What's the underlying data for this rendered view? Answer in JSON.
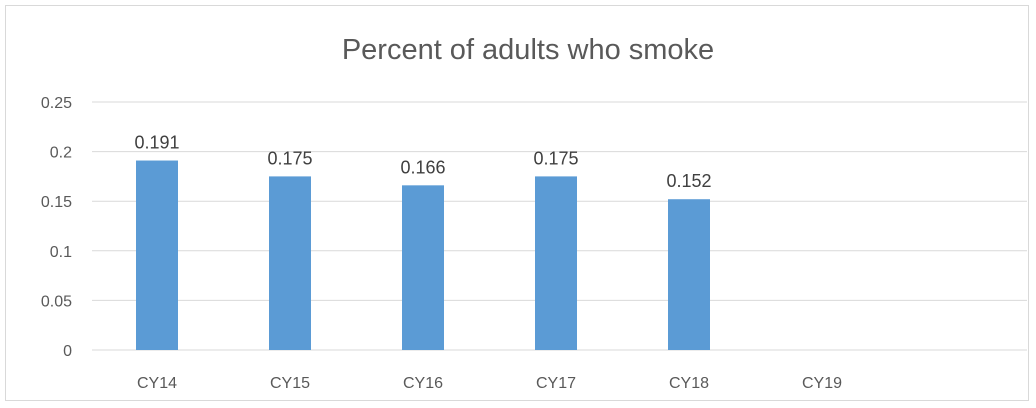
{
  "chart_data": {
    "type": "bar",
    "title": "Percent of adults who smoke",
    "categories": [
      "CY14",
      "CY15",
      "CY16",
      "CY17",
      "CY18",
      "CY19"
    ],
    "values": [
      0.191,
      0.175,
      0.166,
      0.175,
      0.152,
      null
    ],
    "data_labels": [
      "0.191",
      "0.175",
      "0.166",
      "0.175",
      "0.152",
      ""
    ],
    "y_ticks": [
      "0",
      "0.05",
      "0.1",
      "0.15",
      "0.2",
      "0.25"
    ],
    "ylim": [
      0,
      0.25
    ],
    "xlabel": "",
    "ylabel": "",
    "grid": true,
    "legend": false,
    "colors": {
      "bar": "#5b9bd5",
      "grid": "#d9d9d9",
      "axis_text": "#595959",
      "title_text": "#595959",
      "data_label_text": "#404040"
    }
  }
}
